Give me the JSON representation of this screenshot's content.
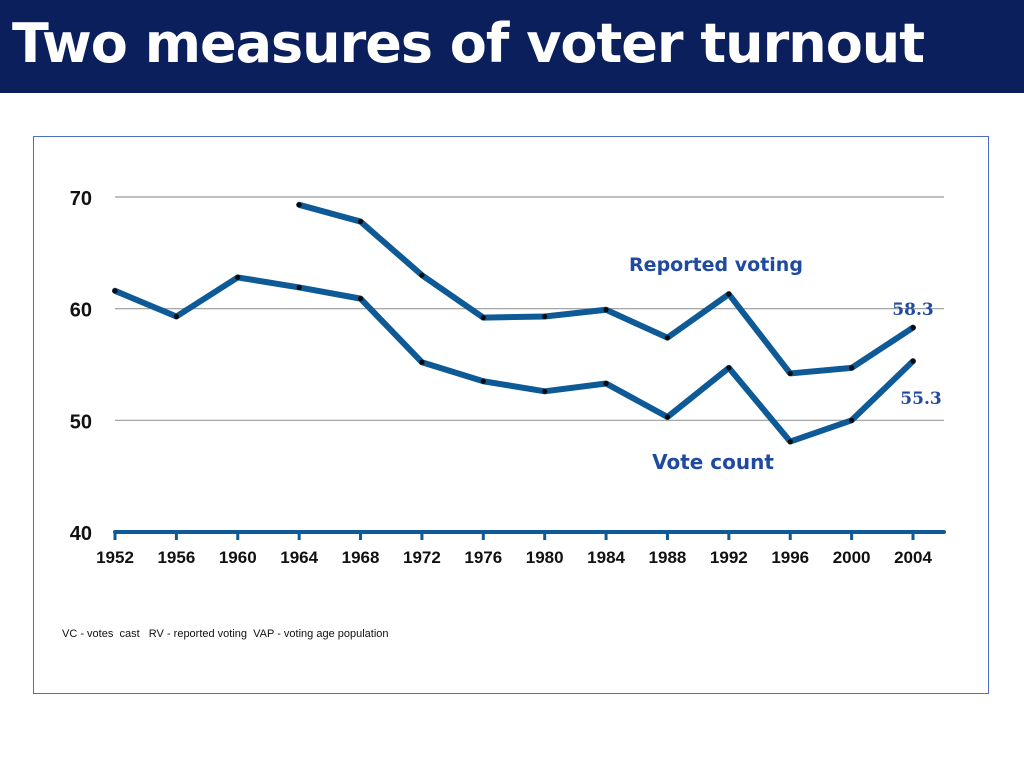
{
  "slide": {
    "title": "Two measures of voter turnout",
    "footnote": "VC - votes  cast   RV - reported voting  VAP - voting age population"
  },
  "colors": {
    "title_bg": "#0b1f5c",
    "line": "#0d5a96",
    "label": "#1f4aa0",
    "grid": "#999999"
  },
  "chart_data": {
    "type": "line",
    "x": [
      1952,
      1956,
      1960,
      1964,
      1968,
      1972,
      1976,
      1980,
      1984,
      1988,
      1992,
      1996,
      2000,
      2004
    ],
    "xticks": [
      "1952",
      "1956",
      "1960",
      "1964",
      "1968",
      "1972",
      "1976",
      "1980",
      "1984",
      "1988",
      "1992",
      "1996",
      "2000",
      "2004"
    ],
    "yticks": [
      "40",
      "50",
      "60",
      "70"
    ],
    "ylim": [
      40,
      70
    ],
    "grid": true,
    "series": [
      {
        "name": "Reported voting",
        "x": [
          1964,
          1968,
          1972,
          1976,
          1980,
          1984,
          1988,
          1992,
          1996,
          2000,
          2004
        ],
        "values": [
          69.3,
          67.8,
          63.0,
          59.2,
          59.3,
          59.9,
          57.4,
          61.3,
          54.2,
          54.7,
          58.3
        ]
      },
      {
        "name": "Vote count",
        "x": [
          1952,
          1956,
          1960,
          1964,
          1968,
          1972,
          1976,
          1980,
          1984,
          1988,
          1992,
          1996,
          2000,
          2004
        ],
        "values": [
          61.6,
          59.3,
          62.8,
          61.9,
          60.9,
          55.2,
          53.5,
          52.6,
          53.3,
          50.3,
          54.7,
          48.1,
          50.0,
          55.3
        ]
      }
    ],
    "annotations": [
      "58.3",
      "55.3"
    ]
  }
}
